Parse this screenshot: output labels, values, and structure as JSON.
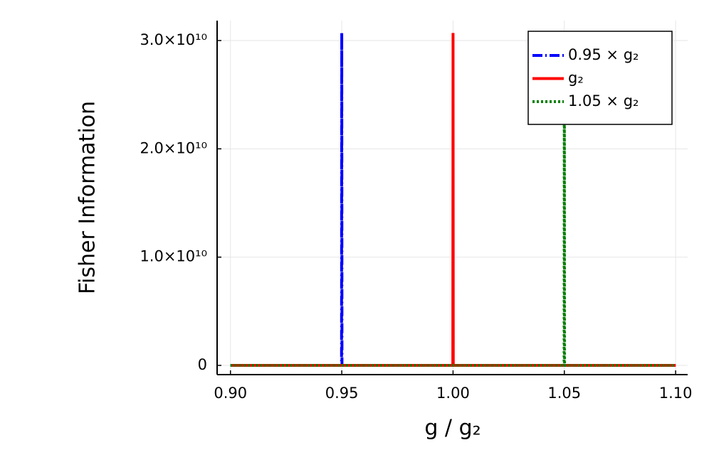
{
  "chart_data": {
    "type": "line",
    "xlabel": "g / g₂",
    "ylabel": "Fisher Information",
    "x": [
      0.9,
      0.9499,
      0.95,
      0.9501,
      0.9999,
      1.0,
      1.0001,
      1.0499,
      1.05,
      1.0501,
      1.1
    ],
    "series": [
      {
        "name": "0.95 × g₂",
        "color": "#0000ff",
        "dash": "dashdot",
        "values": [
          0,
          0,
          30700000000,
          0,
          0,
          0,
          0,
          0,
          0,
          0,
          0
        ]
      },
      {
        "name": "g₂",
        "color": "#ff0000",
        "dash": "solid",
        "values": [
          0,
          0,
          0,
          0,
          0,
          30700000000,
          0,
          0,
          0,
          0,
          0
        ]
      },
      {
        "name": "1.05 × g₂",
        "color": "#008000",
        "dash": "dotted",
        "values": [
          0,
          0,
          0,
          0,
          0,
          0,
          0,
          0,
          30700000000,
          0,
          0
        ]
      }
    ],
    "xlim": [
      0.894,
      1.1054
    ],
    "ylim": [
      -850000000,
      31840000000
    ],
    "xticks": [
      {
        "value": 0.9,
        "label": "0.90"
      },
      0.95,
      {
        "value": 1.0,
        "label": "1.00"
      },
      1.05,
      {
        "value": 1.1,
        "label": "1.10"
      }
    ],
    "yticks": [
      0,
      {
        "value": 10000000000,
        "label": "1.0×10¹⁰"
      },
      {
        "value": 20000000000,
        "label": "2.0×10¹⁰"
      },
      {
        "value": 30000000000,
        "label": "3.0×10¹⁰"
      }
    ],
    "grid": true,
    "legend": "top-right"
  }
}
